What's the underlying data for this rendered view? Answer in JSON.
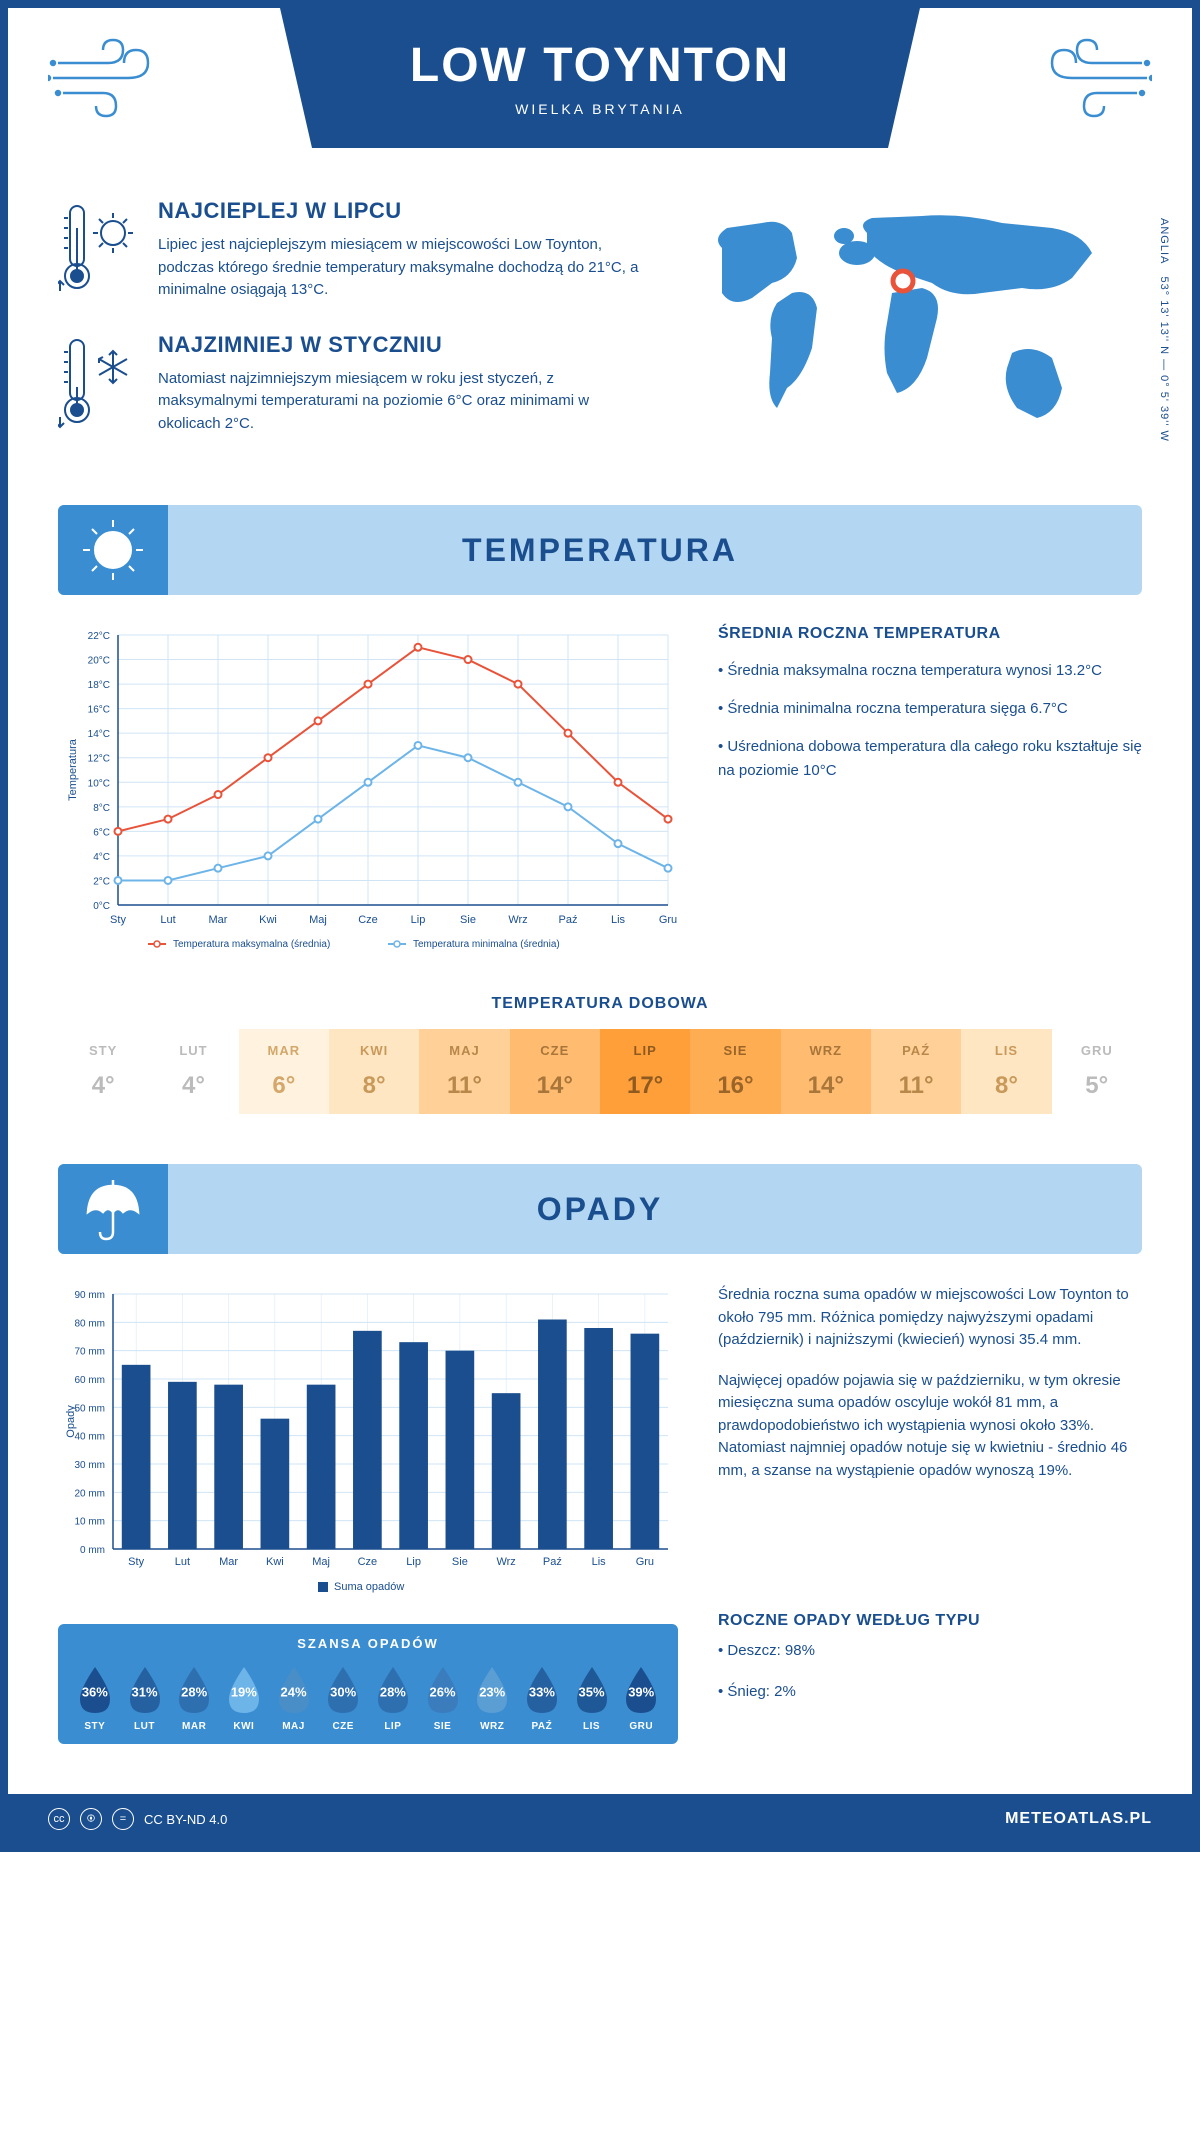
{
  "header": {
    "title": "LOW TOYNTON",
    "subtitle": "WIELKA BRYTANIA"
  },
  "coords": {
    "text": "53° 13' 13'' N — 0° 5' 39'' W",
    "region": "ANGLIA"
  },
  "intro": {
    "warm": {
      "title": "NAJCIEPLEJ W LIPCU",
      "text": "Lipiec jest najcieplejszym miesiącem w miejscowości Low Toynton, podczas którego średnie temperatury maksymalne dochodzą do 21°C, a minimalne osiągają 13°C."
    },
    "cold": {
      "title": "NAJZIMNIEJ W STYCZNIU",
      "text": "Natomiast najzimniejszym miesiącem w roku jest styczeń, z maksymalnymi temperaturami na poziomie 6°C oraz minimami w okolicach 2°C."
    }
  },
  "map": {
    "marker_color": "#e8533a",
    "land_color": "#3a8dd0",
    "marker_x": 0.48,
    "marker_y": 0.32
  },
  "temp_section": {
    "banner": "TEMPERATURA",
    "chart": {
      "months": [
        "Sty",
        "Lut",
        "Mar",
        "Kwi",
        "Maj",
        "Cze",
        "Lip",
        "Sie",
        "Wrz",
        "Paź",
        "Lis",
        "Gru"
      ],
      "max_series": {
        "label": "Temperatura maksymalna (średnia)",
        "color": "#e8533a",
        "values": [
          6,
          7,
          9,
          12,
          15,
          18,
          21,
          20,
          18,
          14,
          10,
          7
        ]
      },
      "min_series": {
        "label": "Temperatura minimalna (średnia)",
        "color": "#6db4e8",
        "values": [
          2,
          2,
          3,
          4,
          7,
          10,
          13,
          12,
          10,
          8,
          5,
          3
        ]
      },
      "ylabel": "Temperatura",
      "ylim": [
        0,
        22
      ],
      "ytick_step": 2,
      "grid_color": "#d0e4f5",
      "axis_color": "#1a4e8e",
      "background": "#ffffff"
    },
    "info": {
      "title": "ŚREDNIA ROCZNA TEMPERATURA",
      "b1": "• Średnia maksymalna roczna temperatura wynosi 13.2°C",
      "b2": "• Średnia minimalna roczna temperatura sięga 6.7°C",
      "b3": "• Uśredniona dobowa temperatura dla całego roku kształtuje się na poziomie 10°C"
    },
    "daily": {
      "title": "TEMPERATURA DOBOWA",
      "months": [
        "STY",
        "LUT",
        "MAR",
        "KWI",
        "MAJ",
        "CZE",
        "LIP",
        "SIE",
        "WRZ",
        "PAŹ",
        "LIS",
        "GRU"
      ],
      "values": [
        "4°",
        "4°",
        "6°",
        "8°",
        "11°",
        "14°",
        "17°",
        "16°",
        "14°",
        "11°",
        "8°",
        "5°"
      ],
      "colors": [
        "#ffffff",
        "#ffffff",
        "#fff3e0",
        "#ffe6c2",
        "#ffd199",
        "#ffbc70",
        "#ff9f3a",
        "#ffad52",
        "#ffbc70",
        "#ffd199",
        "#ffe6c2",
        "#ffffff"
      ],
      "text_colors": [
        "#bbbbbb",
        "#bbbbbb",
        "#d4a76a",
        "#c9995a",
        "#b8874a",
        "#a8753a",
        "#8f5a1f",
        "#9a6528",
        "#a8753a",
        "#b8874a",
        "#c9995a",
        "#bbbbbb"
      ]
    }
  },
  "precip_section": {
    "banner": "OPADY",
    "chart": {
      "months": [
        "Sty",
        "Lut",
        "Mar",
        "Kwi",
        "Maj",
        "Cze",
        "Lip",
        "Sie",
        "Wrz",
        "Paź",
        "Lis",
        "Gru"
      ],
      "values": [
        65,
        59,
        58,
        46,
        58,
        77,
        73,
        70,
        55,
        81,
        78,
        76
      ],
      "label": "Suma opadów",
      "bar_color": "#1a4e8e",
      "ylabel": "Opady",
      "ylim": [
        0,
        90
      ],
      "ytick_step": 10,
      "grid_color": "#d0e4f5",
      "axis_color": "#1a4e8e",
      "unit": "mm"
    },
    "info": {
      "p1": "Średnia roczna suma opadów w miejscowości Low Toynton to około 795 mm. Różnica pomiędzy najwyższymi opadami (październik) i najniższymi (kwiecień) wynosi 35.4 mm.",
      "p2": "Najwięcej opadów pojawia się w październiku, w tym okresie miesięczna suma opadów oscyluje wokół 81 mm, a prawdopodobieństwo ich wystąpienia wynosi około 33%. Natomiast najmniej opadów notuje się w kwietniu - średnio 46 mm, a szanse na wystąpienie opadów wynoszą 19%.",
      "type_title": "ROCZNE OPADY WEDŁUG TYPU",
      "type_rain": "• Deszcz: 98%",
      "type_snow": "• Śnieg: 2%"
    },
    "chance": {
      "title": "SZANSA OPADÓW",
      "months": [
        "STY",
        "LUT",
        "MAR",
        "KWI",
        "MAJ",
        "CZE",
        "LIP",
        "SIE",
        "WRZ",
        "PAŹ",
        "LIS",
        "GRU"
      ],
      "values": [
        "36%",
        "31%",
        "28%",
        "19%",
        "24%",
        "30%",
        "28%",
        "26%",
        "23%",
        "33%",
        "35%",
        "39%"
      ],
      "drop_colors": [
        "#1a4e8e",
        "#2560a0",
        "#2e6fb0",
        "#6db4e8",
        "#4a8ec8",
        "#2e6fb0",
        "#2e6fb0",
        "#3a7cbc",
        "#5a9ed4",
        "#2560a0",
        "#1f5896",
        "#1a4e8e"
      ]
    }
  },
  "footer": {
    "license": "CC BY-ND 4.0",
    "site": "METEOATLAS.PL"
  },
  "colors": {
    "primary": "#1a4e8e",
    "light_blue": "#b3d7f2",
    "mid_blue": "#3a8dd0",
    "orange": "#e8533a"
  }
}
